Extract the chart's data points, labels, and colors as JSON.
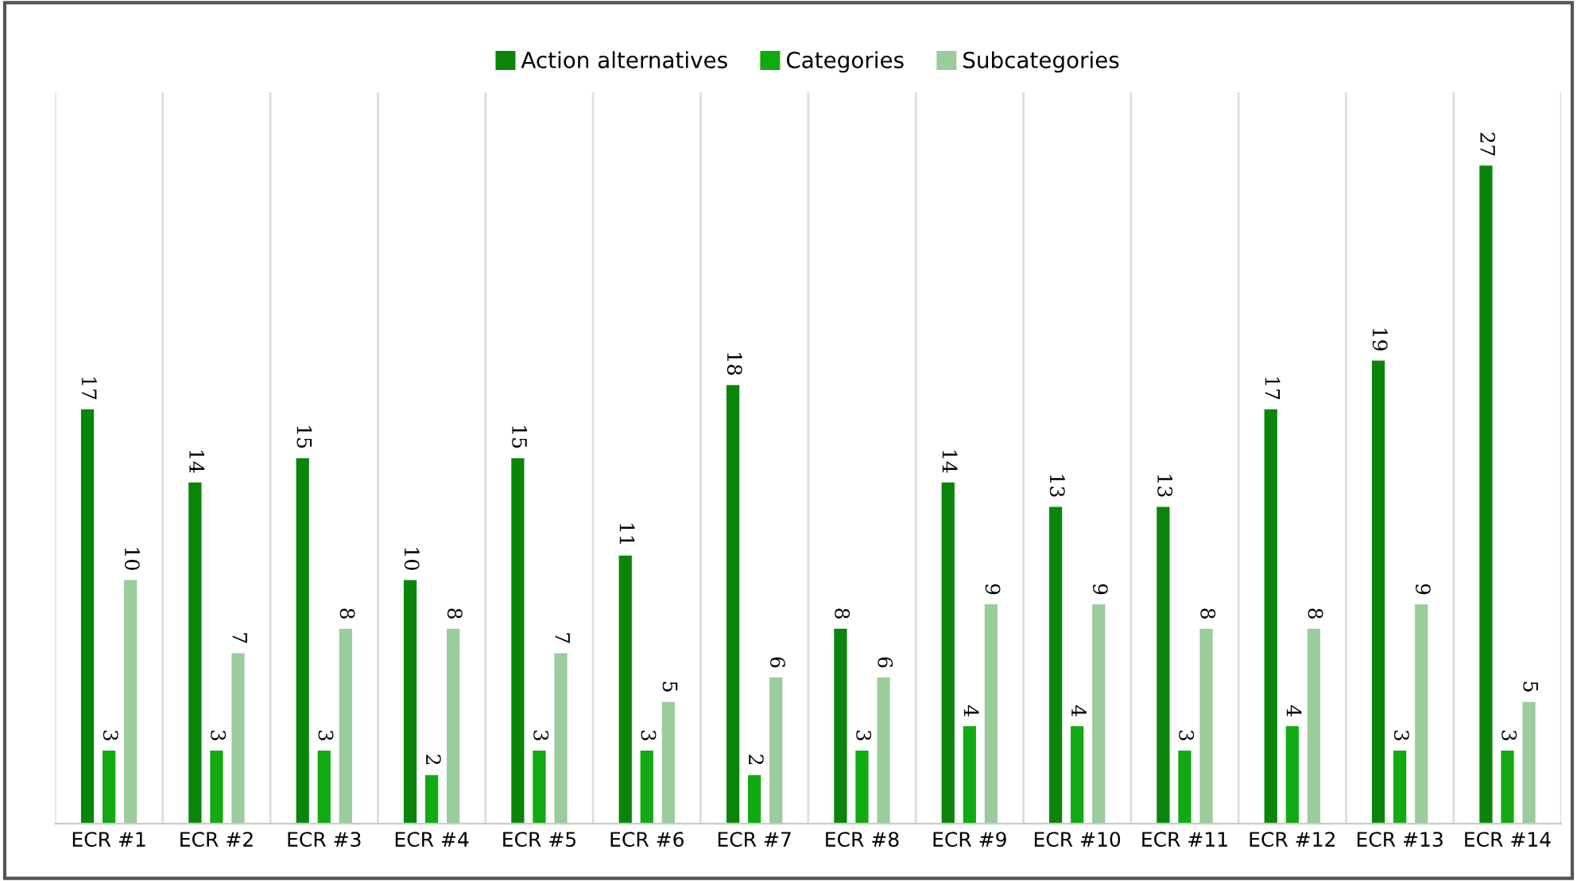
{
  "chart_data": {
    "type": "bar",
    "categories": [
      "ECR #1",
      "ECR #2",
      "ECR #3",
      "ECR #4",
      "ECR #5",
      "ECR #6",
      "ECR #7",
      "ECR #8",
      "ECR #9",
      "ECR #10",
      "ECR #11",
      "ECR #12",
      "ECR #13",
      "ECR #14"
    ],
    "series": [
      {
        "name": "Action alternatives",
        "color": "#0a850a",
        "values": [
          17,
          14,
          15,
          10,
          15,
          11,
          18,
          8,
          14,
          13,
          13,
          17,
          19,
          27
        ]
      },
      {
        "name": "Categories",
        "color": "#12aa12",
        "values": [
          3,
          3,
          3,
          2,
          3,
          3,
          2,
          3,
          4,
          4,
          3,
          4,
          3,
          3
        ]
      },
      {
        "name": "Subcategories",
        "color": "#9bcc9b",
        "values": [
          10,
          7,
          8,
          8,
          7,
          5,
          6,
          6,
          9,
          9,
          8,
          8,
          9,
          5
        ]
      }
    ],
    "ylim": [
      0,
      30
    ],
    "data_labels": true,
    "legend": "top",
    "grid": "x",
    "tick_labels": "x"
  }
}
